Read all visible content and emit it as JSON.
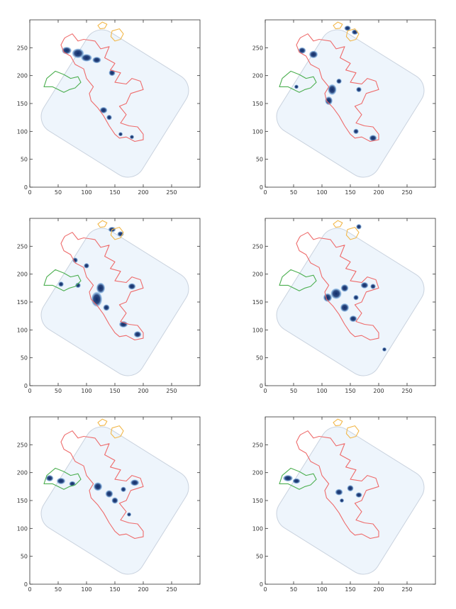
{
  "figure": {
    "colors": {
      "density_light": "#eef5fc",
      "density_dark": "#0d2c6b",
      "boundary": "#c9d2de",
      "contour_red": "#ee6b6b",
      "contour_green": "#4caf50",
      "contour_orange": "#f2b84b"
    }
  },
  "chart_data": [
    {
      "type": "heatmap",
      "panel": "row1-left",
      "xlim": [
        0,
        300
      ],
      "ylim": [
        0,
        300
      ],
      "xticks": [
        "0",
        "50",
        "100",
        "150",
        "200",
        "250"
      ],
      "yticks": [
        "0",
        "50",
        "100",
        "150",
        "200",
        "250"
      ],
      "grid": false,
      "blobs": [
        {
          "x": 65,
          "y": 245,
          "rx": 9,
          "ry": 7
        },
        {
          "x": 85,
          "y": 240,
          "rx": 11,
          "ry": 9
        },
        {
          "x": 100,
          "y": 232,
          "rx": 10,
          "ry": 7
        },
        {
          "x": 118,
          "y": 228,
          "rx": 8,
          "ry": 6
        },
        {
          "x": 145,
          "y": 205,
          "rx": 6,
          "ry": 6
        },
        {
          "x": 130,
          "y": 138,
          "rx": 7,
          "ry": 6
        },
        {
          "x": 140,
          "y": 125,
          "rx": 5,
          "ry": 5
        },
        {
          "x": 160,
          "y": 95,
          "rx": 4,
          "ry": 4
        },
        {
          "x": 180,
          "y": 90,
          "rx": 4,
          "ry": 4
        }
      ]
    },
    {
      "type": "heatmap",
      "panel": "row1-right",
      "xlim": [
        0,
        300
      ],
      "ylim": [
        0,
        300
      ],
      "xticks": [
        "0",
        "50",
        "100",
        "150",
        "200",
        "250"
      ],
      "yticks": [
        "0",
        "50",
        "100",
        "150",
        "200",
        "250"
      ],
      "grid": false,
      "blobs": [
        {
          "x": 65,
          "y": 245,
          "rx": 7,
          "ry": 6
        },
        {
          "x": 85,
          "y": 238,
          "rx": 8,
          "ry": 7
        },
        {
          "x": 55,
          "y": 180,
          "rx": 4,
          "ry": 4
        },
        {
          "x": 118,
          "y": 175,
          "rx": 8,
          "ry": 10
        },
        {
          "x": 112,
          "y": 155,
          "rx": 7,
          "ry": 8
        },
        {
          "x": 130,
          "y": 190,
          "rx": 5,
          "ry": 5
        },
        {
          "x": 165,
          "y": 175,
          "rx": 5,
          "ry": 5
        },
        {
          "x": 145,
          "y": 285,
          "rx": 6,
          "ry": 5
        },
        {
          "x": 158,
          "y": 278,
          "rx": 6,
          "ry": 5
        },
        {
          "x": 160,
          "y": 100,
          "rx": 5,
          "ry": 5
        },
        {
          "x": 190,
          "y": 88,
          "rx": 7,
          "ry": 6
        }
      ]
    },
    {
      "type": "heatmap",
      "panel": "row2-left",
      "xlim": [
        0,
        300
      ],
      "ylim": [
        0,
        300
      ],
      "xticks": [
        "0",
        "50",
        "100",
        "150",
        "200",
        "250"
      ],
      "yticks": [
        "0",
        "50",
        "100",
        "150",
        "200",
        "250"
      ],
      "grid": false,
      "blobs": [
        {
          "x": 80,
          "y": 225,
          "rx": 5,
          "ry": 5
        },
        {
          "x": 100,
          "y": 215,
          "rx": 5,
          "ry": 5
        },
        {
          "x": 55,
          "y": 182,
          "rx": 5,
          "ry": 5
        },
        {
          "x": 85,
          "y": 180,
          "rx": 5,
          "ry": 5
        },
        {
          "x": 125,
          "y": 175,
          "rx": 8,
          "ry": 10
        },
        {
          "x": 118,
          "y": 155,
          "rx": 10,
          "ry": 14
        },
        {
          "x": 135,
          "y": 140,
          "rx": 6,
          "ry": 6
        },
        {
          "x": 180,
          "y": 178,
          "rx": 7,
          "ry": 6
        },
        {
          "x": 165,
          "y": 110,
          "rx": 8,
          "ry": 6
        },
        {
          "x": 190,
          "y": 92,
          "rx": 7,
          "ry": 6
        },
        {
          "x": 145,
          "y": 280,
          "rx": 7,
          "ry": 5
        },
        {
          "x": 160,
          "y": 272,
          "rx": 6,
          "ry": 5
        }
      ]
    },
    {
      "type": "heatmap",
      "panel": "row2-right",
      "xlim": [
        0,
        300
      ],
      "ylim": [
        0,
        300
      ],
      "xticks": [
        "0",
        "50",
        "100",
        "150",
        "200",
        "250"
      ],
      "yticks": [
        "0",
        "50",
        "100",
        "150",
        "200",
        "250"
      ],
      "grid": false,
      "blobs": [
        {
          "x": 125,
          "y": 165,
          "rx": 10,
          "ry": 10
        },
        {
          "x": 110,
          "y": 158,
          "rx": 8,
          "ry": 8
        },
        {
          "x": 140,
          "y": 175,
          "rx": 7,
          "ry": 7
        },
        {
          "x": 140,
          "y": 140,
          "rx": 8,
          "ry": 8
        },
        {
          "x": 155,
          "y": 120,
          "rx": 7,
          "ry": 6
        },
        {
          "x": 175,
          "y": 180,
          "rx": 7,
          "ry": 6
        },
        {
          "x": 190,
          "y": 178,
          "rx": 5,
          "ry": 5
        },
        {
          "x": 160,
          "y": 158,
          "rx": 5,
          "ry": 5
        },
        {
          "x": 165,
          "y": 285,
          "rx": 5,
          "ry": 5
        },
        {
          "x": 210,
          "y": 65,
          "rx": 4,
          "ry": 4
        }
      ]
    },
    {
      "type": "heatmap",
      "panel": "row3-left",
      "xlim": [
        0,
        300
      ],
      "ylim": [
        0,
        300
      ],
      "xticks": [
        "0",
        "50",
        "100",
        "150",
        "200",
        "250"
      ],
      "yticks": [
        "0",
        "50",
        "100",
        "150",
        "200",
        "250"
      ],
      "grid": false,
      "blobs": [
        {
          "x": 35,
          "y": 190,
          "rx": 7,
          "ry": 6
        },
        {
          "x": 55,
          "y": 185,
          "rx": 8,
          "ry": 6
        },
        {
          "x": 75,
          "y": 180,
          "rx": 6,
          "ry": 5
        },
        {
          "x": 120,
          "y": 175,
          "rx": 8,
          "ry": 8
        },
        {
          "x": 140,
          "y": 162,
          "rx": 7,
          "ry": 7
        },
        {
          "x": 150,
          "y": 150,
          "rx": 6,
          "ry": 6
        },
        {
          "x": 185,
          "y": 182,
          "rx": 8,
          "ry": 6
        },
        {
          "x": 165,
          "y": 170,
          "rx": 5,
          "ry": 5
        },
        {
          "x": 175,
          "y": 125,
          "rx": 4,
          "ry": 4
        }
      ]
    },
    {
      "type": "heatmap",
      "panel": "row3-right",
      "xlim": [
        0,
        300
      ],
      "ylim": [
        0,
        300
      ],
      "xticks": [
        "0",
        "50",
        "100",
        "150",
        "200",
        "250"
      ],
      "yticks": [
        "0",
        "50",
        "100",
        "150",
        "200",
        "250"
      ],
      "grid": false,
      "blobs": [
        {
          "x": 40,
          "y": 190,
          "rx": 9,
          "ry": 6
        },
        {
          "x": 55,
          "y": 185,
          "rx": 7,
          "ry": 5
        },
        {
          "x": 130,
          "y": 165,
          "rx": 7,
          "ry": 6
        },
        {
          "x": 150,
          "y": 172,
          "rx": 6,
          "ry": 6
        },
        {
          "x": 165,
          "y": 160,
          "rx": 6,
          "ry": 5
        },
        {
          "x": 135,
          "y": 150,
          "rx": 4,
          "ry": 4
        }
      ]
    }
  ],
  "contours": {
    "red": [
      [
        62,
        268
      ],
      [
        75,
        275
      ],
      [
        85,
        262
      ],
      [
        95,
        265
      ],
      [
        115,
        262
      ],
      [
        125,
        248
      ],
      [
        140,
        252
      ],
      [
        132,
        232
      ],
      [
        150,
        222
      ],
      [
        142,
        210
      ],
      [
        160,
        205
      ],
      [
        150,
        188
      ],
      [
        170,
        185
      ],
      [
        180,
        195
      ],
      [
        195,
        190
      ],
      [
        200,
        175
      ],
      [
        178,
        168
      ],
      [
        170,
        150
      ],
      [
        158,
        145
      ],
      [
        170,
        130
      ],
      [
        160,
        115
      ],
      [
        175,
        110
      ],
      [
        190,
        108
      ],
      [
        200,
        95
      ],
      [
        200,
        85
      ],
      [
        185,
        82
      ],
      [
        170,
        90
      ],
      [
        158,
        88
      ],
      [
        150,
        95
      ],
      [
        140,
        110
      ],
      [
        130,
        128
      ],
      [
        120,
        142
      ],
      [
        108,
        155
      ],
      [
        105,
        168
      ],
      [
        112,
        180
      ],
      [
        100,
        195
      ],
      [
        95,
        212
      ],
      [
        80,
        220
      ],
      [
        72,
        235
      ],
      [
        60,
        242
      ],
      [
        55,
        255
      ],
      [
        60,
        265
      ]
    ],
    "green": [
      [
        25,
        180
      ],
      [
        30,
        195
      ],
      [
        45,
        208
      ],
      [
        60,
        202
      ],
      [
        72,
        195
      ],
      [
        85,
        198
      ],
      [
        90,
        188
      ],
      [
        80,
        178
      ],
      [
        70,
        175
      ],
      [
        60,
        170
      ],
      [
        50,
        175
      ],
      [
        40,
        180
      ],
      [
        25,
        180
      ]
    ],
    "orange_a": [
      [
        120,
        290
      ],
      [
        128,
        296
      ],
      [
        136,
        292
      ],
      [
        132,
        285
      ],
      [
        124,
        284
      ],
      [
        120,
        290
      ]
    ],
    "orange_b": [
      [
        145,
        280
      ],
      [
        158,
        284
      ],
      [
        165,
        275
      ],
      [
        160,
        265
      ],
      [
        150,
        262
      ],
      [
        143,
        270
      ],
      [
        145,
        280
      ]
    ]
  }
}
